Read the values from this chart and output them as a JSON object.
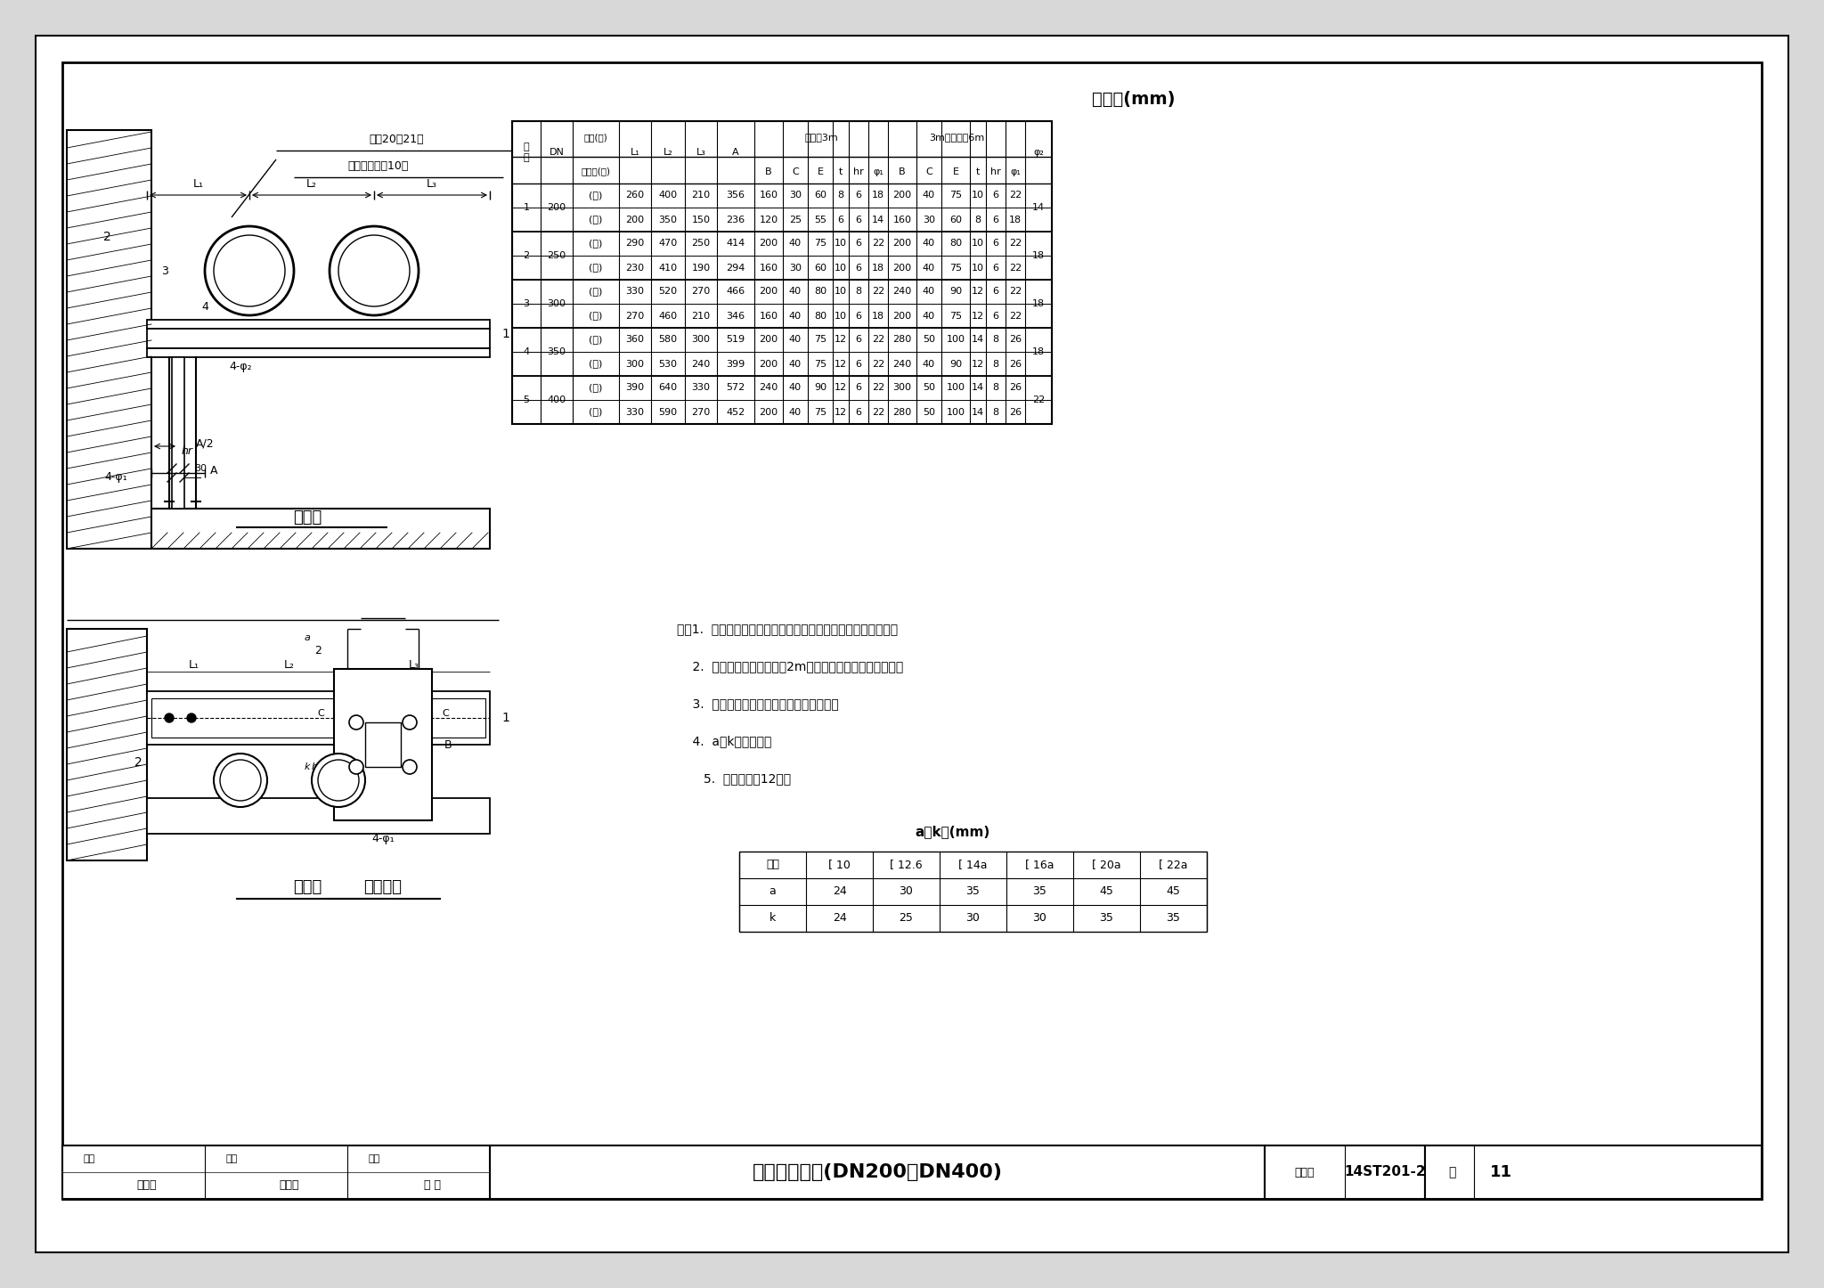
{
  "title": "双管支架安装(DN200～DN400)",
  "chart_no": "14ST201-2",
  "page": "11",
  "page_label": "页",
  "fig_no_label": "图集号",
  "table_title": "尺寸表(mm)",
  "table_data": [
    [
      1,
      200,
      "(一)",
      260,
      400,
      210,
      356,
      160,
      30,
      60,
      8,
      6,
      18,
      200,
      40,
      75,
      10,
      6,
      22,
      14
    ],
    [
      1,
      200,
      "(二)",
      200,
      350,
      150,
      236,
      120,
      25,
      55,
      6,
      6,
      14,
      160,
      30,
      60,
      8,
      6,
      18,
      ""
    ],
    [
      2,
      250,
      "(一)",
      290,
      470,
      250,
      414,
      200,
      40,
      75,
      10,
      6,
      22,
      200,
      40,
      80,
      10,
      6,
      22,
      18
    ],
    [
      2,
      250,
      "(二)",
      230,
      410,
      190,
      294,
      160,
      30,
      60,
      10,
      6,
      18,
      200,
      40,
      75,
      10,
      6,
      22,
      ""
    ],
    [
      3,
      300,
      "(一)",
      330,
      520,
      270,
      466,
      200,
      40,
      80,
      10,
      8,
      22,
      240,
      40,
      90,
      12,
      6,
      22,
      18
    ],
    [
      3,
      300,
      "(二)",
      270,
      460,
      210,
      346,
      160,
      40,
      80,
      10,
      6,
      18,
      200,
      40,
      75,
      12,
      6,
      22,
      ""
    ],
    [
      4,
      350,
      "(一)",
      360,
      580,
      300,
      519,
      200,
      40,
      75,
      12,
      6,
      22,
      280,
      50,
      100,
      14,
      8,
      26,
      18
    ],
    [
      4,
      350,
      "(二)",
      300,
      530,
      240,
      399,
      200,
      40,
      75,
      12,
      6,
      22,
      240,
      40,
      90,
      12,
      8,
      26,
      ""
    ],
    [
      5,
      400,
      "(一)",
      390,
      640,
      330,
      572,
      240,
      40,
      90,
      12,
      6,
      22,
      300,
      50,
      100,
      14,
      8,
      26,
      22
    ],
    [
      5,
      400,
      "(二)",
      330,
      590,
      270,
      452,
      200,
      40,
      75,
      12,
      6,
      22,
      280,
      50,
      100,
      14,
      8,
      26,
      ""
    ]
  ],
  "notes": [
    "注：1.  膨胀螺栓按混凝土建筑锚栓技术规范或规定的要求选用。",
    "    2.  明装支架安装高度小于2m时，横杆末端应做倒角处理。",
    "    3.  选用时不符合本图条件，应另行核算。",
    "    4.  a、k值见下表。"
  ],
  "note5": "5.  材料表见第12页。",
  "ak_table_title": "a、k值(mm)",
  "ak_headers": [
    "型钢",
    "[ 10",
    "[ 12.6",
    "[ 14a",
    "[ 16a",
    "[ 20a",
    "[ 22a"
  ],
  "ak_a": [
    24,
    30,
    35,
    35,
    45,
    45
  ],
  "ak_k": [
    24,
    25,
    30,
    30,
    35,
    35
  ]
}
